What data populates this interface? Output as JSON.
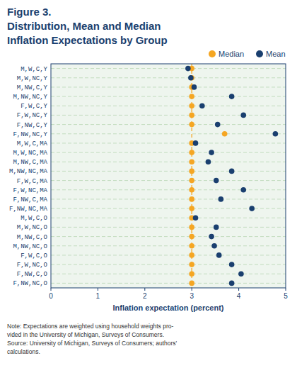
{
  "chart_data": {
    "type": "dot",
    "title": [
      "Figure 3.",
      "Distribution, Mean and Median",
      "Inflation Expectations by Group"
    ],
    "annotations": [
      "Note: Expectations are weighted using household weights pro-",
      "vided in the University of Michigan, Surveys of Consumers.",
      "Source: University of Michigan, Surveys of Consumers; authors'",
      "calculations."
    ],
    "x_label": "Inflation expectation (percent)",
    "xlim": [
      0,
      5
    ],
    "xticks": [
      0,
      1,
      2,
      3,
      4,
      5
    ],
    "categories": [
      "M,W,C,Y",
      "M,W,NC,Y",
      "M,NW,C,Y",
      "M,NW,NC,Y",
      "F,W,C,Y",
      "F,W,NC,Y",
      "F,NW,C,Y",
      "F,NW,NC,Y",
      "M,W,C,MA",
      "M,W,NC,MA",
      "M,NW,C,MA",
      "M,NW,NC,MA",
      "F,W,C,MA",
      "F,W,NC,MA",
      "F,NW,C,MA",
      "F,NW,NC,MA",
      "M,W,C,O",
      "M,W,NC,O",
      "M,NW,C,O",
      "M,NW,NC,O",
      "F,W,C,O",
      "F,W,NC,O",
      "F,NW,C,O",
      "F,NW,NC,O"
    ],
    "series": [
      {
        "name": "Median",
        "color": "#f5a623",
        "values": [
          3.0,
          3.0,
          3.0,
          3.0,
          3.0,
          3.0,
          3.0,
          3.7,
          3.0,
          3.0,
          3.0,
          3.0,
          3.0,
          3.0,
          3.0,
          3.0,
          3.0,
          3.0,
          3.0,
          3.0,
          3.0,
          3.0,
          3.0,
          3.0
        ]
      },
      {
        "name": "Mean",
        "color": "#1a3f6f",
        "values": [
          2.92,
          2.98,
          3.05,
          3.85,
          3.22,
          4.1,
          3.55,
          4.78,
          3.08,
          3.42,
          3.35,
          3.85,
          3.52,
          4.1,
          3.62,
          4.28,
          3.08,
          3.52,
          3.42,
          3.48,
          3.58,
          3.85,
          4.05,
          3.85
        ]
      }
    ],
    "vline": {
      "x": 3.0,
      "color": "#f5a623"
    },
    "grid": true,
    "legend": "top-right"
  }
}
